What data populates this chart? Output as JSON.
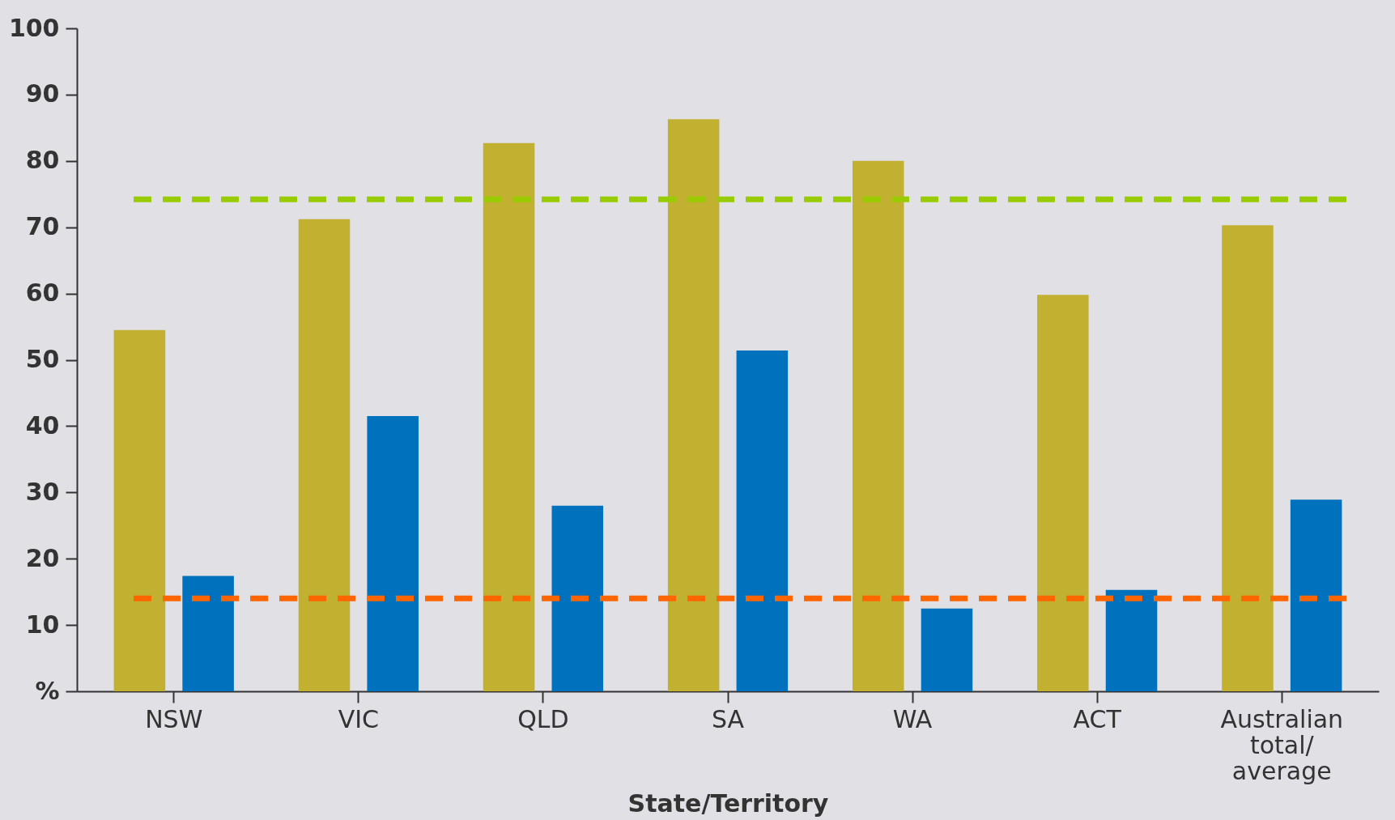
{
  "chart_data": {
    "type": "bar",
    "xlabel": "State/Territory",
    "categories": [
      "NSW",
      "VIC",
      "QLD",
      "SA",
      "WA",
      "ACT",
      "Australian total/ average"
    ],
    "series": [
      {
        "color": "#c2b030",
        "values": [
          54.5,
          71.2,
          82.7,
          86.3,
          80,
          59.8,
          70.3
        ]
      },
      {
        "color": "#0071bc",
        "values": [
          17.4,
          41.5,
          28,
          51.4,
          12.5,
          15.3,
          28.9
        ]
      }
    ],
    "ylim": [
      0,
      100
    ],
    "yticks": [
      {
        "value": 0,
        "label": "%"
      },
      10,
      20,
      30,
      40,
      50,
      60,
      70,
      80,
      90,
      100
    ],
    "ref_lines": [
      {
        "axis": "y",
        "value": 74.2,
        "color": "#99cc00",
        "line_style": "dashed"
      },
      {
        "axis": "y",
        "value": 14,
        "color": "#ff6600",
        "line_style": "dashed"
      }
    ],
    "grid": false,
    "legend": false
  }
}
